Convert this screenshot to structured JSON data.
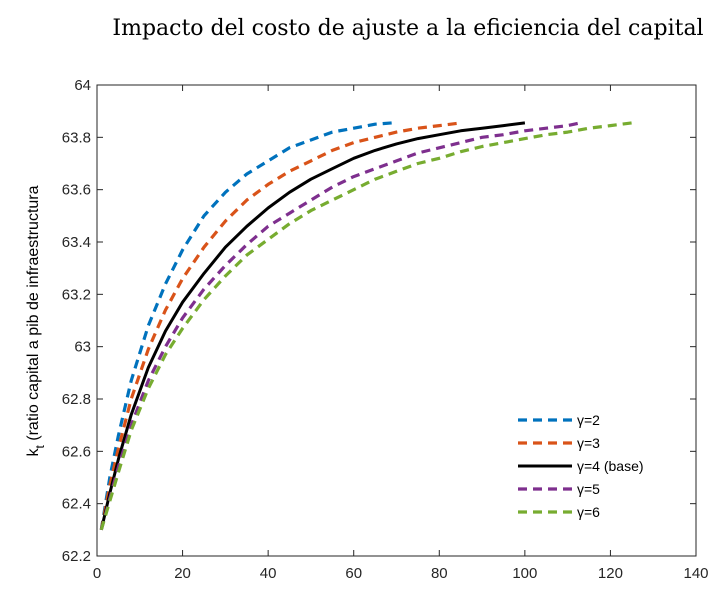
{
  "chart_data": {
    "type": "line",
    "title": "Impacto del costo de ajuste a la eficiencia del capital",
    "xlabel": "",
    "ylabel": "k_t (ratio capital a pib de infraestructura",
    "ylabel_main": "k",
    "ylabel_sub": "t",
    "ylabel_rest": " (ratio capital a pib de infraestructura",
    "xlim": [
      0,
      140
    ],
    "ylim": [
      62.2,
      64
    ],
    "xticks": [
      0,
      20,
      40,
      60,
      80,
      100,
      120,
      140
    ],
    "yticks": [
      62.2,
      62.4,
      62.6,
      62.8,
      63,
      63.2,
      63.4,
      63.6,
      63.8,
      64
    ],
    "xtick_labels": [
      "0",
      "20",
      "40",
      "60",
      "80",
      "100",
      "120",
      "140"
    ],
    "ytick_labels": [
      "62.2",
      "62.4",
      "62.6",
      "62.8",
      "63",
      "63.2",
      "63.4",
      "63.6",
      "63.8",
      "64"
    ],
    "grid": false,
    "legend_position": "lower-right",
    "series": [
      {
        "name": "γ=2",
        "color": "#0072BD",
        "style": "dashed",
        "x": [
          1,
          3,
          5,
          8,
          12,
          16,
          20,
          25,
          30,
          35,
          40,
          45,
          50,
          55,
          60,
          65,
          69
        ],
        "y": [
          62.3,
          62.5,
          62.66,
          62.87,
          63.08,
          63.24,
          63.37,
          63.5,
          63.59,
          63.66,
          63.71,
          63.76,
          63.79,
          63.82,
          63.835,
          63.85,
          63.855
        ]
      },
      {
        "name": "γ=3",
        "color": "#D95319",
        "style": "dashed",
        "x": [
          1,
          3,
          5,
          8,
          12,
          16,
          20,
          25,
          30,
          35,
          40,
          45,
          50,
          55,
          60,
          65,
          70,
          75,
          80,
          85
        ],
        "y": [
          62.3,
          62.47,
          62.61,
          62.8,
          62.99,
          63.14,
          63.26,
          63.38,
          63.48,
          63.56,
          63.62,
          63.67,
          63.71,
          63.75,
          63.78,
          63.8,
          63.82,
          63.835,
          63.845,
          63.855
        ]
      },
      {
        "name": "γ=4 (base)",
        "color": "#000000",
        "style": "solid",
        "x": [
          1,
          3,
          5,
          8,
          12,
          16,
          20,
          25,
          30,
          35,
          40,
          45,
          50,
          55,
          60,
          65,
          70,
          75,
          80,
          85,
          90,
          95,
          100
        ],
        "y": [
          62.3,
          62.44,
          62.57,
          62.74,
          62.92,
          63.06,
          63.17,
          63.28,
          63.38,
          63.46,
          63.53,
          63.59,
          63.64,
          63.68,
          63.72,
          63.75,
          63.775,
          63.795,
          63.81,
          63.825,
          63.835,
          63.845,
          63.855
        ]
      },
      {
        "name": "γ=5",
        "color": "#7E2F8E",
        "style": "dashed",
        "x": [
          1,
          3,
          5,
          8,
          12,
          16,
          20,
          25,
          30,
          35,
          40,
          45,
          50,
          55,
          60,
          65,
          70,
          75,
          80,
          85,
          90,
          95,
          100,
          105,
          110,
          113
        ],
        "y": [
          62.3,
          62.42,
          62.54,
          62.7,
          62.87,
          63.0,
          63.11,
          63.22,
          63.31,
          63.39,
          63.46,
          63.51,
          63.56,
          63.61,
          63.65,
          63.68,
          63.71,
          63.74,
          63.76,
          63.78,
          63.8,
          63.81,
          63.825,
          63.835,
          63.845,
          63.855
        ]
      },
      {
        "name": "γ=6",
        "color": "#77AC30",
        "style": "dashed",
        "x": [
          1,
          3,
          5,
          8,
          12,
          16,
          20,
          25,
          30,
          35,
          40,
          45,
          50,
          55,
          60,
          65,
          70,
          75,
          80,
          85,
          90,
          95,
          100,
          105,
          110,
          115,
          120,
          125
        ],
        "y": [
          62.3,
          62.41,
          62.52,
          62.68,
          62.84,
          62.97,
          63.07,
          63.18,
          63.27,
          63.35,
          63.41,
          63.47,
          63.52,
          63.56,
          63.6,
          63.64,
          63.67,
          63.7,
          63.72,
          63.745,
          63.765,
          63.78,
          63.795,
          63.81,
          63.82,
          63.835,
          63.845,
          63.855
        ]
      }
    ]
  }
}
